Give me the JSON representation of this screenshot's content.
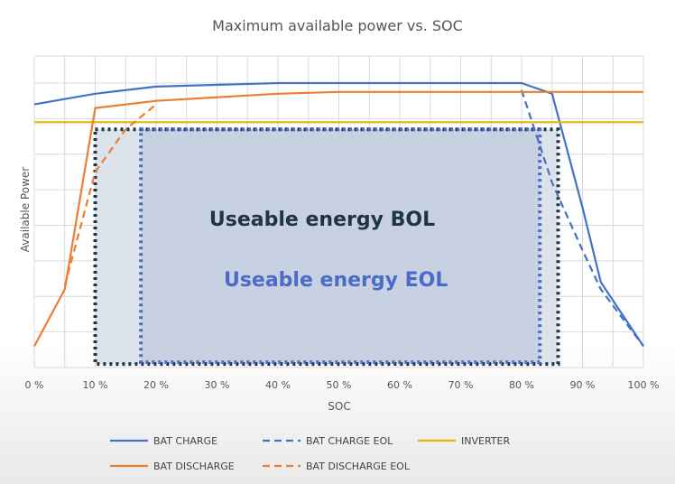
{
  "chart_data": {
    "type": "line",
    "title": "Maximum available power vs. SOC",
    "xlabel": "SOC",
    "ylabel": "Available Power",
    "xlim": [
      0,
      100
    ],
    "ylim": [
      0,
      8
    ],
    "grid": true,
    "x_ticks": [
      "0 %",
      "10 %",
      "20 %",
      "30 %",
      "40 %",
      "50 %",
      "60 %",
      "70 %",
      "80 %",
      "90 %",
      "100 %"
    ],
    "legend_position": "bottom",
    "series": [
      {
        "name": "BAT CHARGE",
        "color": "#4472C4",
        "style": "solid",
        "points": [
          [
            0,
            7.4
          ],
          [
            10,
            7.7
          ],
          [
            20,
            7.9
          ],
          [
            40,
            8.0
          ],
          [
            60,
            8.0
          ],
          [
            80,
            8.0
          ],
          [
            85,
            7.7
          ],
          [
            90,
            4.5
          ],
          [
            93,
            2.4
          ],
          [
            100,
            0.6
          ]
        ]
      },
      {
        "name": "BAT CHARGE EOL",
        "color": "#4472C4",
        "style": "dashed",
        "points": [
          [
            80,
            7.8
          ],
          [
            85,
            5.2
          ],
          [
            90,
            3.3
          ],
          [
            93,
            2.2
          ],
          [
            100,
            0.6
          ]
        ]
      },
      {
        "name": "INVERTER",
        "color": "#E3B50C",
        "style": "solid",
        "points": [
          [
            0,
            6.9
          ],
          [
            100,
            6.9
          ]
        ]
      },
      {
        "name": "BAT DISCHARGE",
        "color": "#ED7D31",
        "style": "solid",
        "points": [
          [
            0,
            0.6
          ],
          [
            5,
            2.2
          ],
          [
            10,
            7.3
          ],
          [
            20,
            7.5
          ],
          [
            40,
            7.7
          ],
          [
            50,
            7.75
          ],
          [
            60,
            7.75
          ],
          [
            80,
            7.75
          ],
          [
            100,
            7.75
          ]
        ]
      },
      {
        "name": "BAT DISCHARGE EOL",
        "color": "#ED7D31",
        "style": "dashed",
        "points": [
          [
            5,
            2.3
          ],
          [
            10,
            5.5
          ],
          [
            15,
            6.7
          ],
          [
            20,
            7.4
          ]
        ]
      }
    ],
    "regions": [
      {
        "label": "Useable energy BOL",
        "x": [
          10,
          86
        ],
        "y": [
          0.1,
          6.7
        ],
        "color": "#1F3349",
        "fill": "#D7DEE8"
      },
      {
        "label": "Useable energy EOL",
        "x": [
          17.5,
          83
        ],
        "y": [
          0.15,
          6.7
        ],
        "color": "#4A6BC6",
        "fill": "#B6C3DA"
      }
    ]
  }
}
